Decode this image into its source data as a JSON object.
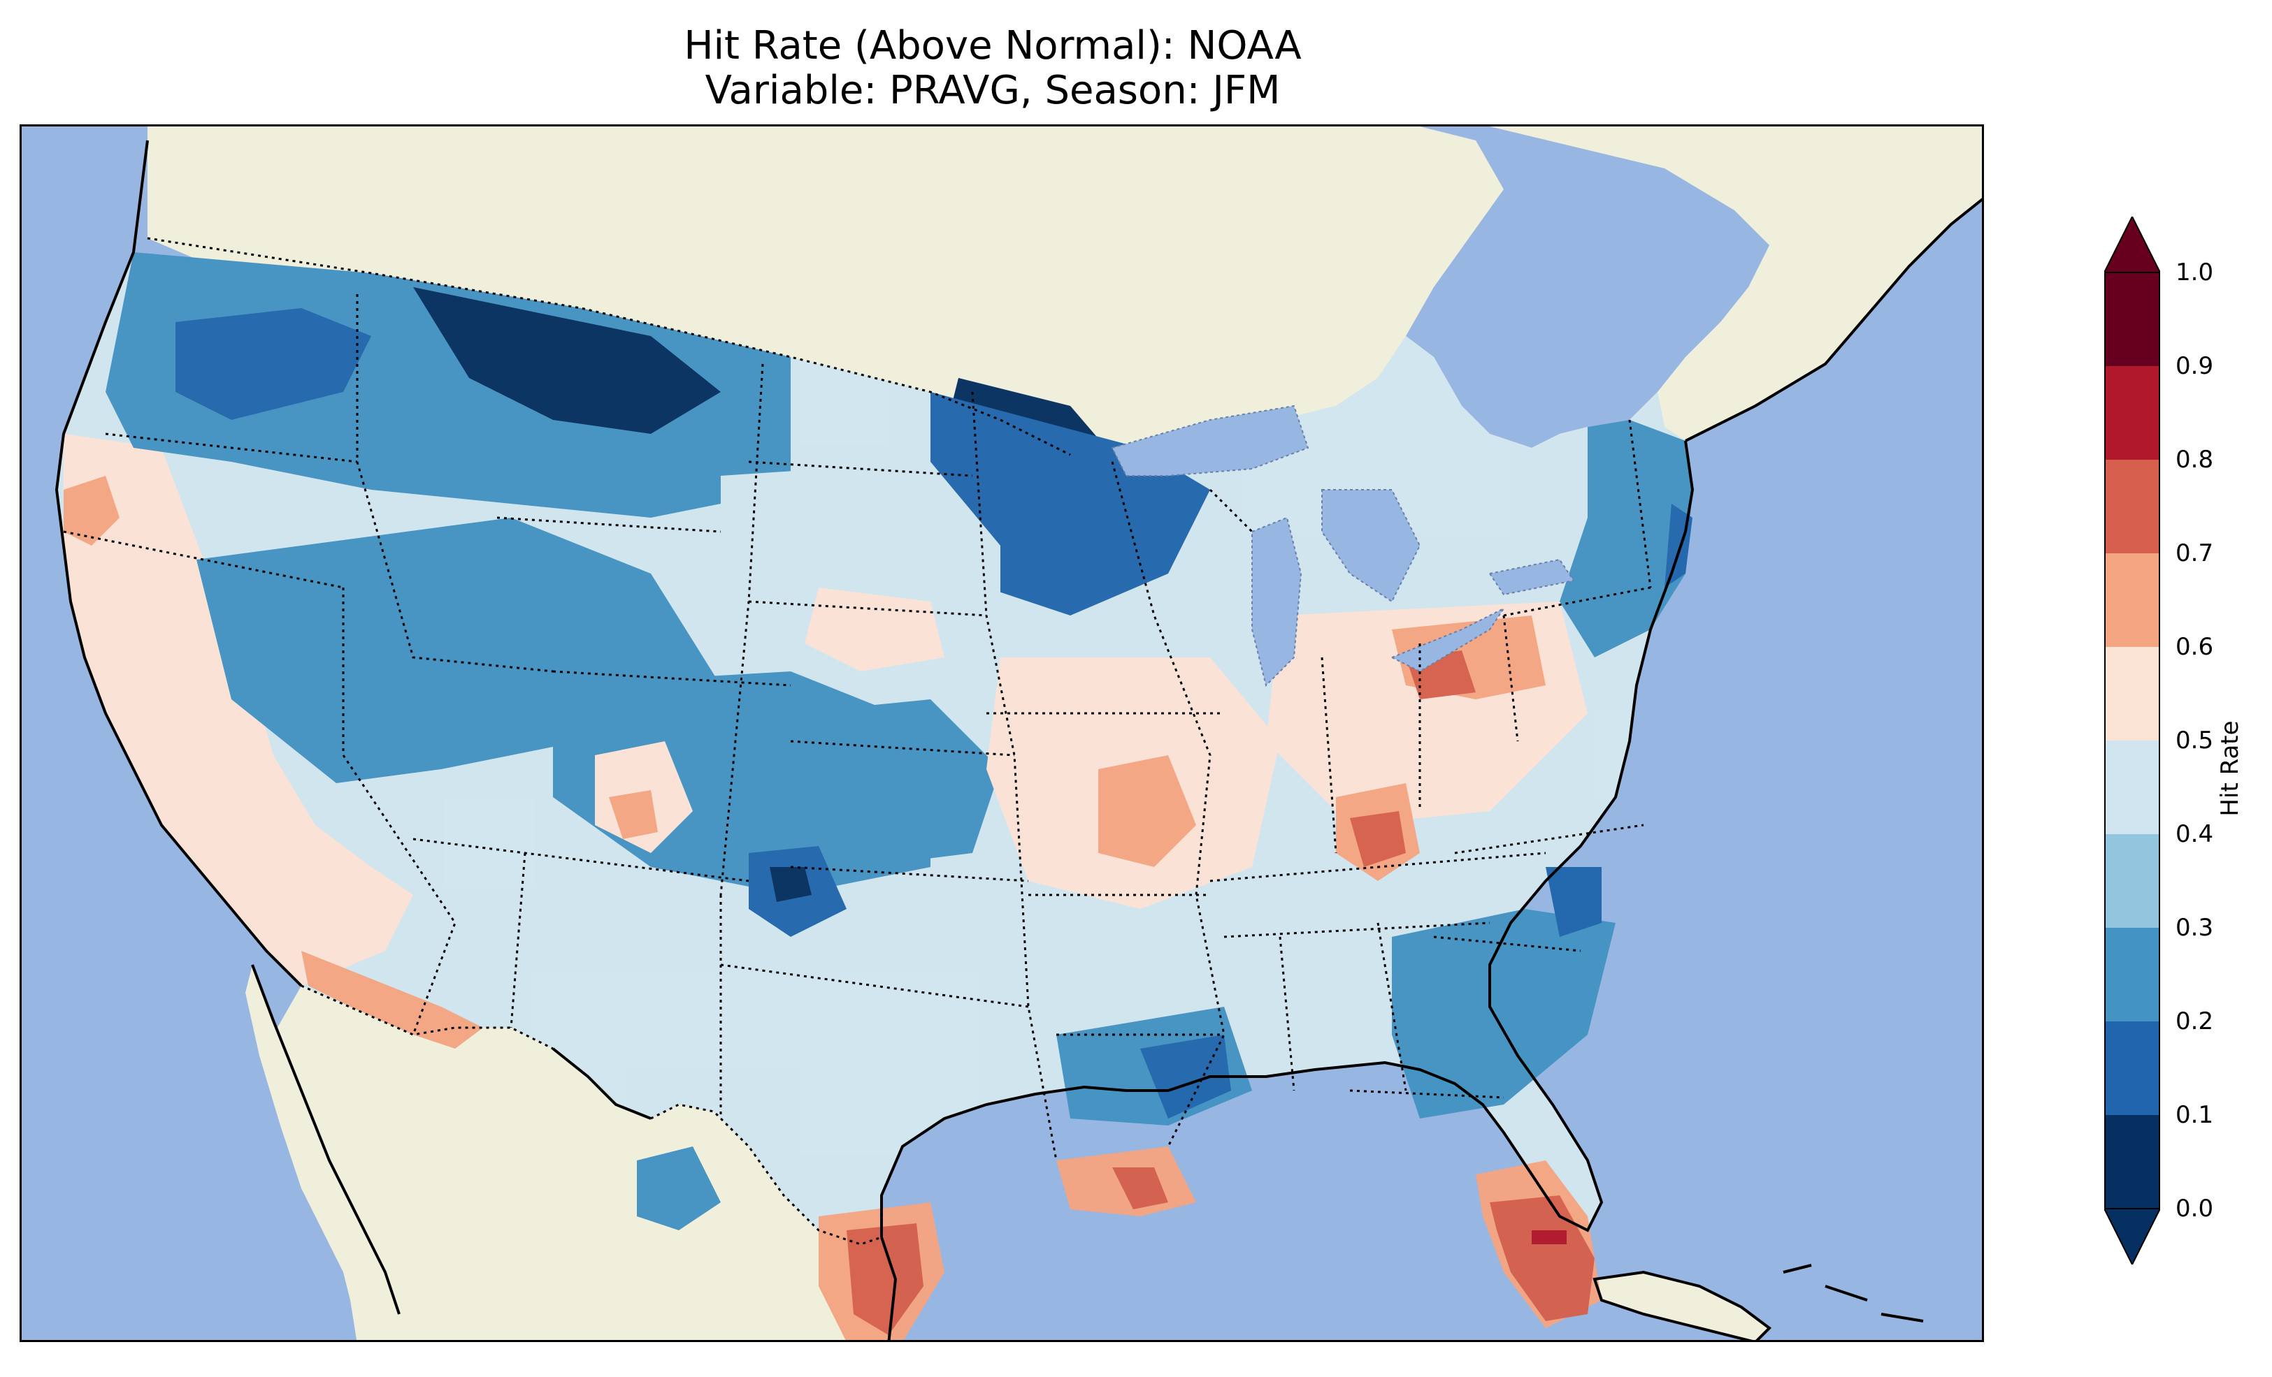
{
  "title": {
    "line1": "Hit Rate (Above Normal): NOAA",
    "line2": "Variable: PRAVG, Season: JFM"
  },
  "map": {
    "region": "Contiguous United States",
    "ocean_color": "#97b6e2",
    "land_color": "#efefdc",
    "coastline_color": "#000000",
    "state_border_style": "dotted"
  },
  "colorbar": {
    "label": "Hit Rate",
    "ticks": [
      "0.0",
      "0.1",
      "0.2",
      "0.3",
      "0.4",
      "0.5",
      "0.6",
      "0.7",
      "0.8",
      "0.9",
      "1.0"
    ],
    "colors": [
      "#053061",
      "#2166ac",
      "#4393c3",
      "#92c5de",
      "#d1e5f0",
      "#fbe3d6",
      "#f4a582",
      "#d6604d",
      "#b2182b",
      "#67001f"
    ],
    "extend": "both"
  }
}
